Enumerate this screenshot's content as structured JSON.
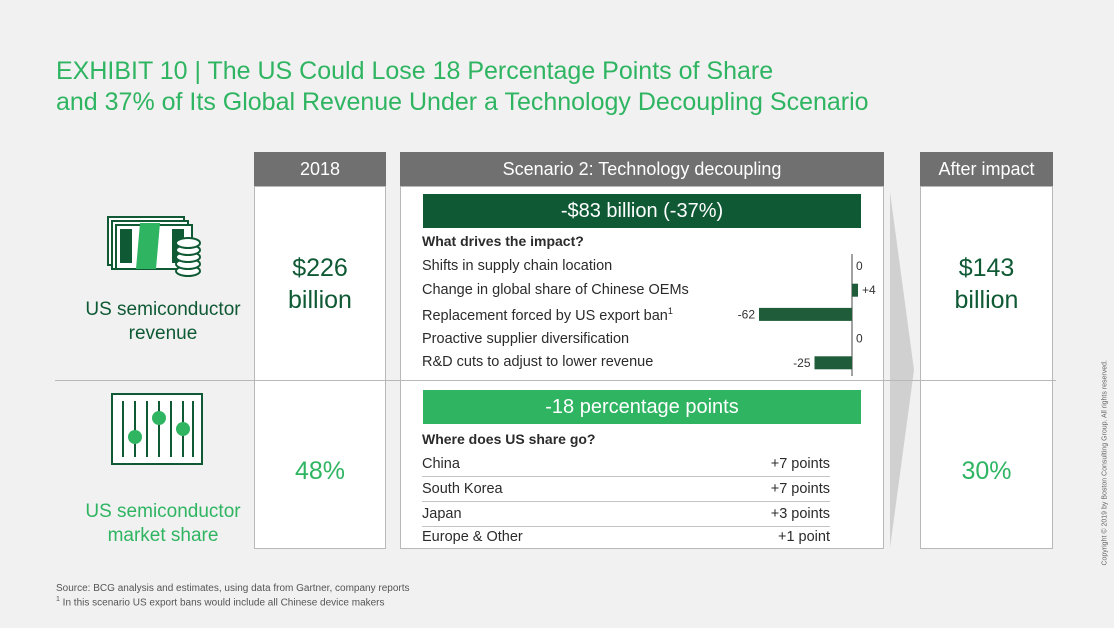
{
  "title": {
    "line1": "EXHIBIT 10 | The US Could Lose 18 Percentage Points of Share",
    "line2": "and 37% of Its Global Revenue Under a Technology Decoupling Scenario"
  },
  "columns": {
    "year": "2018",
    "scenario": "Scenario 2: Technology decoupling",
    "after": "After impact"
  },
  "revenue": {
    "label_line1": "US semiconductor",
    "label_line2": "revenue",
    "value_2018_line1": "$226",
    "value_2018_line2": "billion",
    "banner": "-$83 billion (-37%)",
    "question": "What drives the impact?",
    "after_line1": "$143",
    "after_line2": "billion"
  },
  "share": {
    "label_line1": "US semiconductor",
    "label_line2": "market share",
    "value_2018": "48%",
    "banner": "-18 percentage points",
    "question": "Where does US share go?",
    "after": "30%",
    "rows": [
      {
        "name": "China",
        "value": "+7 points"
      },
      {
        "name": "South Korea",
        "value": "+7 points"
      },
      {
        "name": "Japan",
        "value": "+3 points"
      },
      {
        "name": "Europe & Other",
        "value": "+1 point"
      }
    ]
  },
  "chart_data": {
    "type": "bar",
    "orientation": "horizontal",
    "title": "What drives the impact?",
    "categories": [
      "Shifts in supply chain location",
      "Change in global share of Chinese OEMs",
      "Replacement forced by US export ban",
      "Proactive supplier diversification",
      "R&D cuts to adjust to lower revenue"
    ],
    "footnote_marks": [
      "",
      "",
      "1",
      "",
      ""
    ],
    "values": [
      0,
      4,
      -62,
      0,
      -25
    ],
    "labels": [
      "0",
      "+4",
      "-62",
      "0",
      "-25"
    ],
    "xlim": [
      -70,
      10
    ],
    "unit": "$ billion",
    "colors": {
      "bar": "#1f5c3a",
      "axis": "#444444"
    }
  },
  "colors": {
    "accent": "#2fb562",
    "dark_green": "#0f5a35",
    "header_gray": "#707070"
  },
  "footer": {
    "source": "Source: BCG analysis and estimates, using data from Gartner, company reports",
    "footnote_mark": "1",
    "footnote": " In this scenario US export bans would include all Chinese device makers",
    "copyright": "Copyright © 2019 by Boston Consulting Group. All rights reserved."
  },
  "icons": [
    "money-stack-icon",
    "sliders-icon"
  ]
}
